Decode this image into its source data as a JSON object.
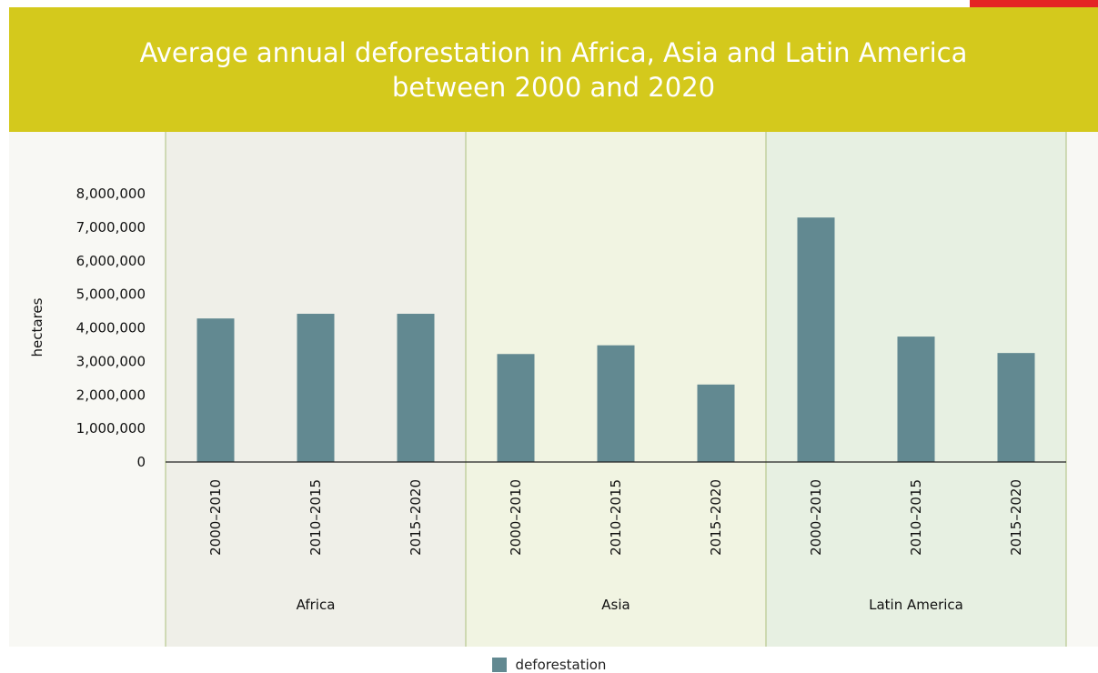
{
  "chart_data": {
    "type": "bar",
    "title": "Average annual deforestation in Africa, Asia and Latin America between 2000 and 2020",
    "ylabel": "hectares",
    "ylim": [
      0,
      8000000
    ],
    "yticks": [
      {
        "value": 0,
        "label": "0"
      },
      {
        "value": 1000000,
        "label": "1,000,000"
      },
      {
        "value": 2000000,
        "label": "2,000,000"
      },
      {
        "value": 3000000,
        "label": "3,000,000"
      },
      {
        "value": 4000000,
        "label": "4,000,000"
      },
      {
        "value": 5000000,
        "label": "5,000,000"
      },
      {
        "value": 6000000,
        "label": "6,000,000"
      },
      {
        "value": 7000000,
        "label": "7,000,000"
      },
      {
        "value": 8000000,
        "label": "8,000,000"
      }
    ],
    "groups": [
      {
        "name": "Africa",
        "bg": "#efefe8",
        "categories": [
          "2000–2010",
          "2010–2015",
          "2015–2020"
        ],
        "values": [
          4280000,
          4420000,
          4420000
        ]
      },
      {
        "name": "Asia",
        "bg": "#f1f4e2",
        "categories": [
          "2000–2010",
          "2010–2015",
          "2015–2020"
        ],
        "values": [
          3220000,
          3480000,
          2310000
        ]
      },
      {
        "name": "Latin America",
        "bg": "#e7f0e2",
        "categories": [
          "2000–2010",
          "2010–2015",
          "2015–2020"
        ],
        "values": [
          7290000,
          3740000,
          3250000
        ]
      }
    ],
    "series": [
      {
        "name": "deforestation",
        "color": "#628991"
      }
    ],
    "legend_position": "bottom-center",
    "grid": false
  },
  "colors": {
    "header": "#d4c91c",
    "corner_tab": "#e42524",
    "divider": "#b8c98f",
    "bar": "#628991"
  }
}
